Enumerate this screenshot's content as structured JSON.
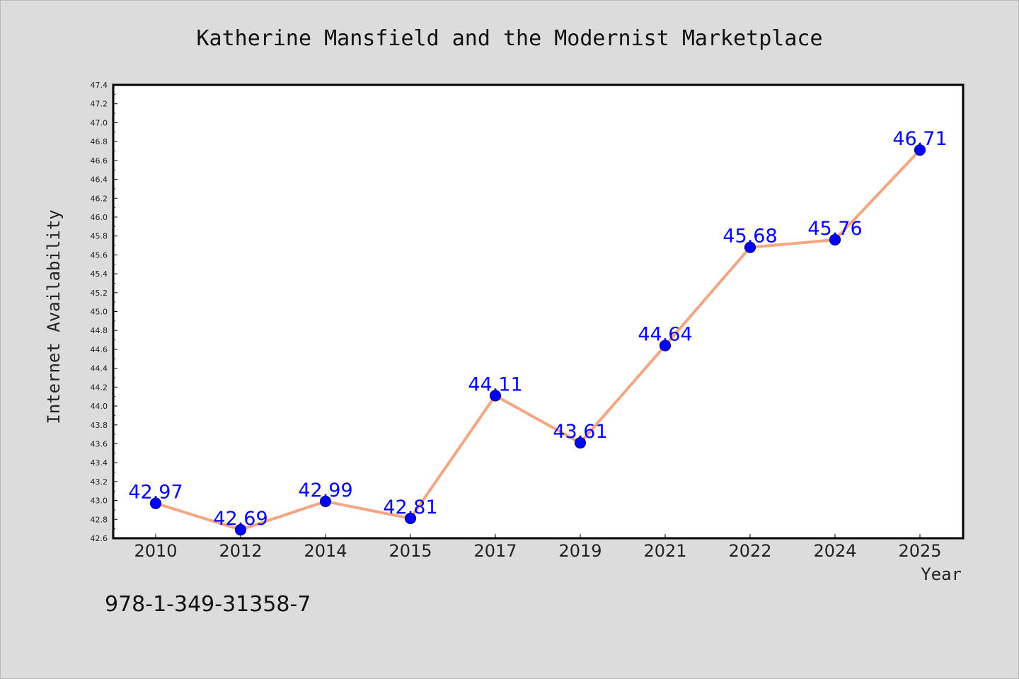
{
  "chart_data": {
    "type": "line",
    "title": "Katherine Mansfield and the Modernist Marketplace",
    "xlabel": "Year",
    "ylabel": "Internet Availability",
    "categories": [
      "2010",
      "2012",
      "2014",
      "2015",
      "2017",
      "2019",
      "2021",
      "2022",
      "2024",
      "2025"
    ],
    "series": [
      {
        "values": [
          42.97,
          42.69,
          42.99,
          42.81,
          44.11,
          43.61,
          44.64,
          45.68,
          45.76,
          46.71
        ],
        "labels": [
          "42.97",
          "42.69",
          "42.99",
          "42.81",
          "44.11",
          "43.61",
          "44.64",
          "45.68",
          "45.76",
          "46.71"
        ]
      }
    ],
    "ylim": [
      42.6,
      47.4
    ],
    "yticks": [
      "42.6",
      "42.8",
      "43.0",
      "43.2",
      "43.4",
      "43.6",
      "43.8",
      "44.0",
      "44.2",
      "44.4",
      "44.6",
      "44.8",
      "45.0",
      "45.2",
      "45.4",
      "45.6",
      "45.8",
      "46.0",
      "46.2",
      "46.4",
      "46.6",
      "46.8",
      "47.0",
      "47.2",
      "47.4"
    ],
    "grid": false,
    "legend": "none",
    "colors": {
      "line": "#f4a582",
      "marker": "#0000ff",
      "marker_edge": "#00007f",
      "data_label": "#0000ff",
      "plot_background": "#ffffff",
      "figure_background": "#dcdcdc"
    }
  },
  "footer": {
    "isbn": "978-1-349-31358-7"
  }
}
